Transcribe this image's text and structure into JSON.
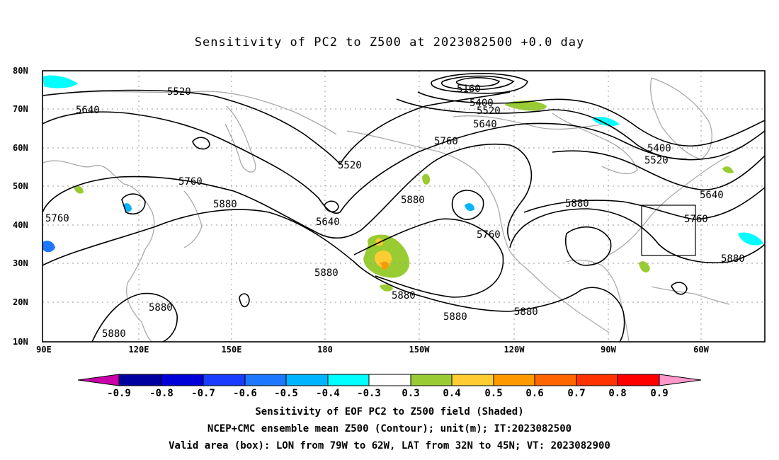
{
  "title": "Sensitivity of PC2 to Z500 at 2023082500 +0.0 day",
  "lat_labels": [
    "80N",
    "70N",
    "60N",
    "50N",
    "40N",
    "30N",
    "20N",
    "10N"
  ],
  "lon_labels": [
    "90E",
    "120E",
    "150E",
    "180",
    "150W",
    "120W",
    "90W",
    "60W"
  ],
  "contour_labels": [
    {
      "text": "5520",
      "id": "c1"
    },
    {
      "text": "5640",
      "id": "c2"
    },
    {
      "text": "5760",
      "id": "c3"
    },
    {
      "text": "5880",
      "id": "c4"
    },
    {
      "text": "5760",
      "id": "c5"
    },
    {
      "text": "5520",
      "id": "c6"
    },
    {
      "text": "5640",
      "id": "c7"
    },
    {
      "text": "5160",
      "id": "c8"
    },
    {
      "text": "5400",
      "id": "c9"
    },
    {
      "text": "5520",
      "id": "c10"
    },
    {
      "text": "5640",
      "id": "c11"
    },
    {
      "text": "5760",
      "id": "c12"
    },
    {
      "text": "5880",
      "id": "c13"
    },
    {
      "text": "5760",
      "id": "c14"
    },
    {
      "text": "5880",
      "id": "c15"
    },
    {
      "text": "5400",
      "id": "c16"
    },
    {
      "text": "5520",
      "id": "c17"
    },
    {
      "text": "5640",
      "id": "c18"
    },
    {
      "text": "5760",
      "id": "c19"
    },
    {
      "text": "5880",
      "id": "c20"
    },
    {
      "text": "5880",
      "id": "c21"
    },
    {
      "text": "5880",
      "id": "c22"
    },
    {
      "text": "5880",
      "id": "c23"
    },
    {
      "text": "5880",
      "id": "c24"
    },
    {
      "text": "5880",
      "id": "c25"
    },
    {
      "text": "5880",
      "id": "c26"
    }
  ],
  "colorbar": {
    "labels": [
      "-0.9",
      "-0.8",
      "-0.7",
      "-0.6",
      "-0.5",
      "-0.4",
      "-0.3",
      "0.3",
      "0.4",
      "0.5",
      "0.6",
      "0.7",
      "0.8",
      "0.9"
    ],
    "colors": [
      "#cc00aa",
      "#0000a0",
      "#0000d8",
      "#1a3cff",
      "#1e78ff",
      "#00b4ff",
      "#00ffff",
      "#ffffff",
      "#99cc33",
      "#ffcc33",
      "#ff9900",
      "#ff6600",
      "#ff3300",
      "#ff0000",
      "#ff99cc"
    ]
  },
  "caption_lines": [
    "Sensitivity of EOF PC2 to Z500 field (Shaded)",
    "NCEP+CMC ensemble mean Z500 (Contour); unit(m); IT:2023082500",
    "Valid area (box): LON from 79W to 62W, LAT from 32N to 45N; VT: 2023082900"
  ],
  "valid_box": {
    "lon_w": -79,
    "lon_e": -62,
    "lat_s": 32,
    "lat_n": 45
  },
  "map_extent": {
    "lon_min": 90,
    "lon_max": 310,
    "lat_min": 10,
    "lat_max": 80
  }
}
